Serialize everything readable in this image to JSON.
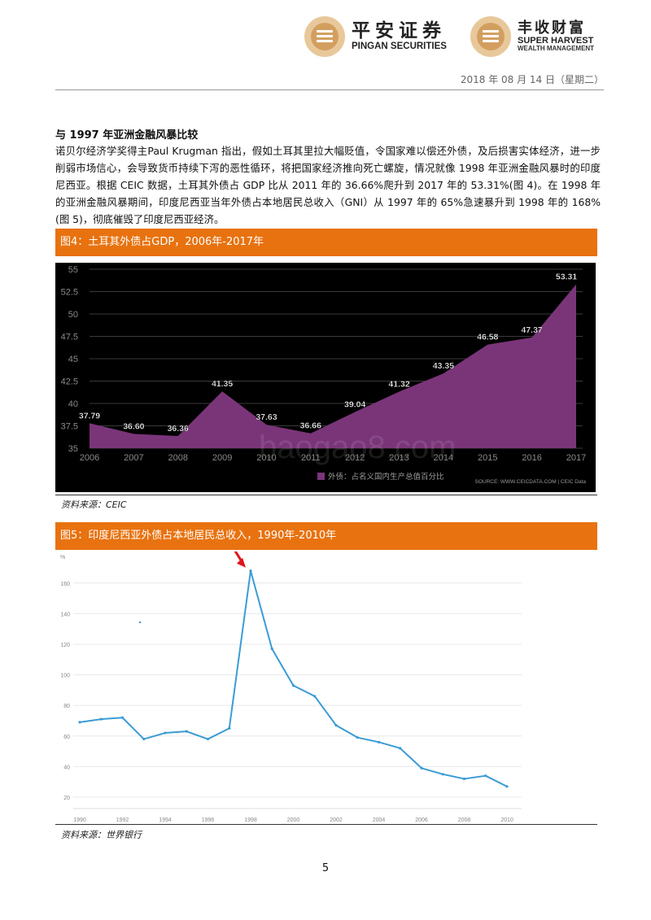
{
  "header": {
    "logo1_cn": "平安证券",
    "logo1_en": "PINGAN SECURITIES",
    "logo2_cn": "丰收财富",
    "logo2_en1": "SUPER HARVEST",
    "logo2_en2": "WEALTH MANAGEMENT",
    "date": "2018 年 08 月 14 日（星期二）"
  },
  "section": {
    "title": "与 1997 年亚洲金融风暴比较",
    "paragraph": "诺贝尔经济学奖得主Paul Krugman 指出，假如土耳其里拉大幅贬值，令国家难以偿还外债，及后损害实体经济，进一步削弱市场信心，会导致货币持续下泻的恶性循环，将把国家经济推向死亡螺旋，情况就像 1998 年亚洲金融风暴时的印度尼西亚。根据 CEIC 数据，土耳其外债占 GDP 比从 2011 年的 36.66%爬升到 2017 年的 53.31%(图 4)。在 1998 年的亚洲金融风暴期间，印度尼西亚当年外债占本地居民总收入（GNI）从 1997 年的 65%急速暴升到 1998 年的 168%(图 5)，彻底催毁了印度尼西亚经济。"
  },
  "figure4": {
    "header": "图4：土耳其外债占GDP，2006年-2017年",
    "source": "资料来源：CEIC",
    "watermark": "baogao8.com",
    "legend_label": "外债：占名义国内生产总值百分比",
    "credit": "SOURCE: WWW.CEICDATA.COM | CEIC Data"
  },
  "figure5": {
    "header": "图5：印度尼西亚外债占本地居民总收入，1990年-2010年",
    "source": "资料来源：世界银行",
    "unit": "%"
  },
  "page_number": "5",
  "colors": {
    "orange": "#e8720f",
    "purple_area": "#7a3579",
    "line_blue": "#3b9bd6"
  },
  "chart_data": [
    {
      "type": "area",
      "x": [
        2006,
        2007,
        2008,
        2009,
        2010,
        2011,
        2012,
        2013,
        2014,
        2015,
        2016,
        2017
      ],
      "series": [
        {
          "name": "外债：占名义国内生产总值百分比",
          "values": [
            37.79,
            36.6,
            36.36,
            41.35,
            37.63,
            36.66,
            39.04,
            41.32,
            43.35,
            46.58,
            47.37,
            53.31
          ]
        }
      ],
      "data_labels": [
        "37.79",
        "36.60",
        "36.36",
        "41.35",
        "37.63",
        "36.66",
        "39.04",
        "41.32",
        "43.35",
        "46.58",
        "47.37",
        "53.31"
      ],
      "ylim": [
        35,
        55
      ],
      "yticks": [
        "35",
        "37.5",
        "40",
        "42.5",
        "45",
        "47.5",
        "50",
        "52.5",
        "55"
      ],
      "xticks": [
        "2006",
        "2007",
        "2008",
        "2009",
        "2010",
        "2011",
        "2012",
        "2013",
        "2014",
        "2015",
        "2016",
        "2017"
      ],
      "grid": true,
      "legend_position": "bottom"
    },
    {
      "type": "line",
      "x": [
        1990,
        1991,
        1992,
        1993,
        1994,
        1995,
        1996,
        1997,
        1998,
        1999,
        2000,
        2001,
        2002,
        2003,
        2004,
        2005,
        2006,
        2007,
        2008,
        2009,
        2010
      ],
      "series": [
        {
          "values": [
            69,
            71,
            72,
            58,
            62,
            63,
            58,
            65,
            168,
            117,
            93,
            86,
            67,
            59,
            56,
            52,
            39,
            35,
            32,
            34,
            27
          ]
        }
      ],
      "ylim": [
        20,
        170
      ],
      "yticks": [
        "20",
        "40",
        "60",
        "80",
        "100",
        "120",
        "140",
        "160"
      ],
      "xticks": [
        "1990",
        "1992",
        "1994",
        "1996",
        "1998",
        "2000",
        "2002",
        "2004",
        "2006",
        "2008",
        "2010"
      ],
      "highlight_year": 1998,
      "grid": true
    }
  ]
}
